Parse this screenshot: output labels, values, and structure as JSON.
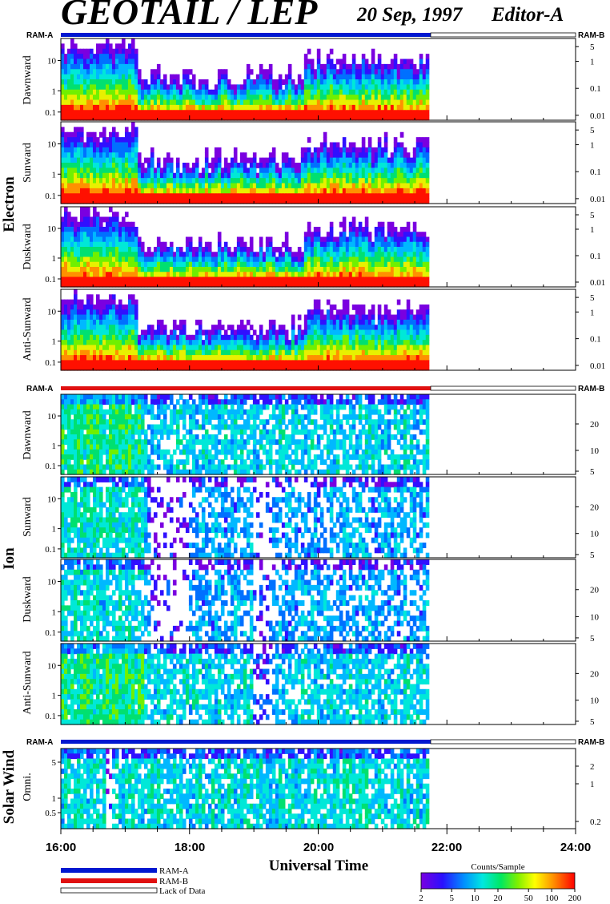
{
  "header": {
    "title": "GEOTAIL / LEP",
    "date": "20 Sep, 1997",
    "editor": "Editor-A"
  },
  "mode_labels": {
    "left": "RAM-A",
    "right": "RAM-B"
  },
  "groups": [
    {
      "name": "Electron",
      "panels": [
        "Dawnward",
        "Sunward",
        "Duskward",
        "Anti-Sunward"
      ]
    },
    {
      "name": "Ion",
      "panels": [
        "Dawnward",
        "Sunward",
        "Duskward",
        "Anti-Sunward"
      ]
    },
    {
      "name": "Solar Wind",
      "panels": [
        "Omni."
      ]
    }
  ],
  "legend": {
    "items": [
      "RAM-A",
      "RAM-B",
      "Lack of Data"
    ],
    "colors": {
      "ram_a": "#0018d0",
      "ram_b": "#e01010",
      "lack": "#ffffff"
    }
  },
  "colorbar": {
    "title": "Counts/Sample",
    "ticks": [
      "2",
      "5",
      "10",
      "20",
      "50",
      "100",
      "200"
    ]
  },
  "chart_data": {
    "type": "heatmap",
    "xlabel": "Universal Time",
    "x_ticks": [
      "16:00",
      "18:00",
      "20:00",
      "22:00",
      "24:00"
    ],
    "x_range_hours": [
      16,
      24
    ],
    "data_end_hour": 21.72,
    "mode_bars": [
      {
        "group": "Electron",
        "segments": [
          {
            "from": 16.0,
            "to": 21.72,
            "mode": "RAM-A"
          },
          {
            "from": 21.72,
            "to": 24.0,
            "mode": "Lack of Data"
          }
        ]
      },
      {
        "group": "Ion",
        "segments": [
          {
            "from": 16.0,
            "to": 21.72,
            "mode": "RAM-B"
          },
          {
            "from": 21.72,
            "to": 24.0,
            "mode": "Lack of Data"
          }
        ]
      },
      {
        "group": "Solar Wind",
        "segments": [
          {
            "from": 16.0,
            "to": 21.72,
            "mode": "RAM-A"
          },
          {
            "from": 21.72,
            "to": 24.0,
            "mode": "Lack of Data"
          }
        ]
      }
    ],
    "panels": [
      {
        "group": "Electron",
        "name": "Dawnward",
        "y_left_ticks": [
          "0.1",
          "1",
          "10"
        ],
        "y_right_ticks": [
          "5",
          "1",
          "0.1",
          "0.01"
        ]
      },
      {
        "group": "Electron",
        "name": "Sunward",
        "y_left_ticks": [
          "0.1",
          "1",
          "10"
        ],
        "y_right_ticks": [
          "5",
          "1",
          "0.1",
          "0.01"
        ]
      },
      {
        "group": "Electron",
        "name": "Duskward",
        "y_left_ticks": [
          "0.1",
          "1",
          "10"
        ],
        "y_right_ticks": [
          "5",
          "1",
          "0.1",
          "0.01"
        ]
      },
      {
        "group": "Electron",
        "name": "Anti-Sunward",
        "y_left_ticks": [
          "0.1",
          "1",
          "10"
        ],
        "y_right_ticks": [
          "5",
          "1",
          "0.1",
          "0.01"
        ]
      },
      {
        "group": "Ion",
        "name": "Dawnward",
        "y_left_ticks": [
          "0.1",
          "1",
          "10"
        ],
        "y_right_ticks": [
          "20",
          "10",
          "5"
        ]
      },
      {
        "group": "Ion",
        "name": "Sunward",
        "y_left_ticks": [
          "0.1",
          "1",
          "10"
        ],
        "y_right_ticks": [
          "20",
          "10",
          "5"
        ]
      },
      {
        "group": "Ion",
        "name": "Duskward",
        "y_left_ticks": [
          "0.1",
          "1",
          "10"
        ],
        "y_right_ticks": [
          "20",
          "10",
          "5"
        ]
      },
      {
        "group": "Ion",
        "name": "Anti-Sunward",
        "y_left_ticks": [
          "0.1",
          "1",
          "10"
        ],
        "y_right_ticks": [
          "20",
          "10",
          "5"
        ]
      },
      {
        "group": "Solar Wind",
        "name": "Omni.",
        "y_left_ticks": [
          "0.5",
          "1",
          "5"
        ],
        "y_right_ticks": [
          "2",
          "1",
          "0.2"
        ]
      }
    ]
  }
}
